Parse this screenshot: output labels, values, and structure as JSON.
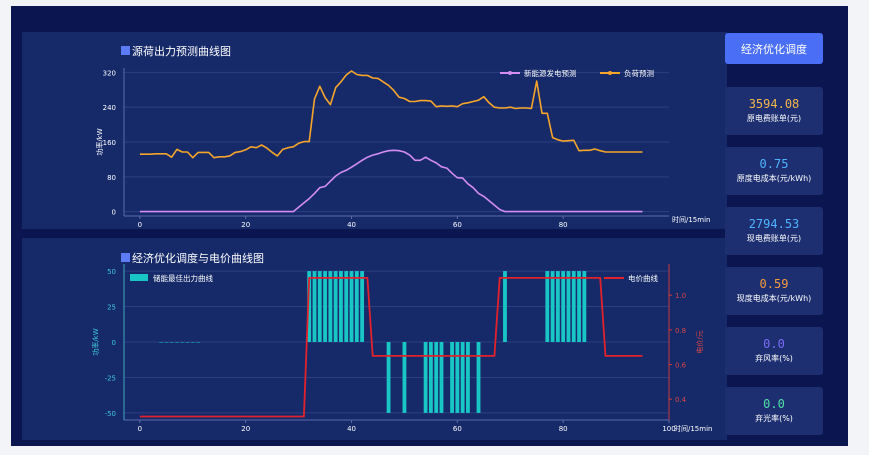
{
  "sidebar": {
    "optimize_button": "经济优化调度",
    "cards": [
      {
        "value": "3594.08",
        "label": "原电费账单(元)",
        "color": "#f2b64a"
      },
      {
        "value": "0.75",
        "label": "原度电成本(元/kWh)",
        "color": "#4fb3ff"
      },
      {
        "value": "2794.53",
        "label": "现电费账单(元)",
        "color": "#4fb3ff"
      },
      {
        "value": "0.59",
        "label": "现度电成本(元/kWh)",
        "color": "#f59a3c"
      },
      {
        "value": "0.0",
        "label": "弃风率(%)",
        "color": "#7b6cf6"
      },
      {
        "value": "0.0",
        "label": "弃光率(%)",
        "color": "#4fe0a8"
      }
    ]
  },
  "chart_data": [
    {
      "type": "line",
      "title": "源荷出力预测曲线图",
      "xlabel": "时间/15min",
      "ylabel": "功率/kW",
      "xlim": [
        -3,
        100
      ],
      "ylim": [
        -10,
        330
      ],
      "xticks": [
        0,
        20,
        40,
        60,
        80
      ],
      "yticks": [
        0,
        80,
        160,
        240,
        320
      ],
      "grid": true,
      "legend_position": "top-right",
      "series": [
        {
          "name": "新能源发电预测",
          "color": "#d38cf0",
          "x": [
            0,
            1,
            2,
            3,
            4,
            5,
            6,
            7,
            8,
            9,
            10,
            11,
            12,
            13,
            14,
            15,
            16,
            17,
            18,
            19,
            20,
            21,
            22,
            23,
            24,
            25,
            26,
            27,
            28,
            29,
            30,
            31,
            32,
            33,
            34,
            35,
            36,
            37,
            38,
            39,
            40,
            41,
            42,
            43,
            44,
            45,
            46,
            47,
            48,
            49,
            50,
            51,
            52,
            53,
            54,
            55,
            56,
            57,
            58,
            59,
            60,
            61,
            62,
            63,
            64,
            65,
            66,
            67,
            68,
            69,
            70,
            71,
            72,
            73,
            74,
            75,
            76,
            77,
            78,
            79,
            80,
            81,
            82,
            83,
            84,
            85,
            86,
            87,
            88,
            89,
            90,
            91,
            92,
            93,
            94,
            95
          ],
          "values": [
            0,
            0,
            0,
            0,
            0,
            0,
            0,
            0,
            0,
            0,
            0,
            0,
            0,
            0,
            0,
            0,
            0,
            0,
            0,
            0,
            0,
            0,
            0,
            0,
            0,
            0,
            0,
            0,
            0,
            0,
            10,
            20,
            30,
            42,
            55,
            58,
            70,
            82,
            90,
            95,
            102,
            110,
            118,
            125,
            130,
            133,
            137,
            140,
            141,
            140,
            137,
            130,
            118,
            118,
            125,
            118,
            112,
            103,
            100,
            88,
            78,
            77,
            64,
            55,
            42,
            35,
            25,
            15,
            5,
            0,
            0,
            0,
            0,
            0,
            0,
            0,
            0,
            0,
            0,
            0,
            0,
            0,
            0,
            0,
            0,
            0,
            0,
            0,
            0,
            0,
            0,
            0,
            0,
            0,
            0,
            0
          ]
        },
        {
          "name": "负荷预测",
          "color": "#f5a52a",
          "x": [
            0,
            1,
            2,
            3,
            4,
            5,
            6,
            7,
            8,
            9,
            10,
            11,
            12,
            13,
            14,
            15,
            16,
            17,
            18,
            19,
            20,
            21,
            22,
            23,
            24,
            25,
            26,
            27,
            28,
            29,
            30,
            31,
            32,
            33,
            34,
            35,
            36,
            37,
            38,
            39,
            40,
            41,
            42,
            43,
            44,
            45,
            46,
            47,
            48,
            49,
            50,
            51,
            52,
            53,
            54,
            55,
            56,
            57,
            58,
            59,
            60,
            61,
            62,
            63,
            64,
            65,
            66,
            67,
            68,
            69,
            70,
            71,
            72,
            73,
            74,
            75,
            76,
            77,
            78,
            79,
            80,
            81,
            82,
            83,
            84,
            85,
            86,
            87,
            88,
            89,
            90,
            91,
            92,
            93,
            94,
            95
          ],
          "values": [
            132,
            132,
            132,
            133,
            133,
            133,
            125,
            143,
            137,
            137,
            124,
            136,
            136,
            136,
            124,
            126,
            126,
            128,
            136,
            138,
            142,
            149,
            147,
            153,
            146,
            136,
            128,
            143,
            147,
            149,
            157,
            161,
            161,
            259,
            288,
            262,
            246,
            285,
            298,
            314,
            323,
            315,
            313,
            313,
            307,
            306,
            298,
            290,
            278,
            263,
            260,
            253,
            253,
            255,
            255,
            254,
            241,
            243,
            242,
            243,
            241,
            248,
            250,
            253,
            256,
            264,
            250,
            240,
            238,
            238,
            240,
            237,
            238,
            238,
            237,
            300,
            226,
            226,
            170,
            165,
            162,
            163,
            164,
            140,
            141,
            141,
            144,
            140,
            137,
            137,
            137,
            137,
            137,
            137,
            137,
            137
          ]
        }
      ]
    },
    {
      "type": "bar",
      "title": "经济优化调度与电价曲线图",
      "xlabel": "时间/15min",
      "ylabel": "功率/kW",
      "y2label": "电价/元",
      "xlim": [
        -3,
        100
      ],
      "ylim": [
        -55,
        55
      ],
      "y2lim": [
        0.28,
        1.18
      ],
      "xticks": [
        0,
        20,
        40,
        60,
        80,
        100
      ],
      "yticks": [
        -50,
        -25,
        0,
        25,
        50
      ],
      "y2ticks": [
        0.4,
        0.6,
        0.8,
        1.0
      ],
      "grid": true,
      "series": [
        {
          "name": "储能最佳出力曲线",
          "type": "bar",
          "color": "#19c6c6",
          "x": [
            4,
            5,
            6,
            7,
            8,
            9,
            10,
            11,
            32,
            33,
            34,
            35,
            36,
            37,
            38,
            39,
            40,
            41,
            42,
            47,
            50,
            54,
            55,
            56,
            57,
            59,
            60,
            61,
            62,
            64,
            69,
            77,
            78,
            79,
            80,
            81,
            82,
            83,
            84
          ],
          "values": [
            0,
            0,
            0,
            0,
            0,
            0,
            0,
            0,
            50,
            50,
            50,
            50,
            50,
            50,
            50,
            50,
            50,
            50,
            50,
            -50,
            -50,
            -50,
            -50,
            -50,
            -50,
            -50,
            -50,
            -50,
            -50,
            -50,
            50,
            50,
            50,
            50,
            50,
            50,
            50,
            50,
            50
          ]
        },
        {
          "name": "电价曲线",
          "type": "line",
          "axis": "right",
          "color": "#e2222a",
          "x": [
            0,
            31,
            32,
            43,
            44,
            67,
            68,
            87,
            88,
            95
          ],
          "values": [
            0.3,
            0.3,
            1.1,
            1.1,
            0.65,
            0.65,
            1.1,
            1.1,
            0.65,
            0.65
          ]
        }
      ]
    }
  ]
}
